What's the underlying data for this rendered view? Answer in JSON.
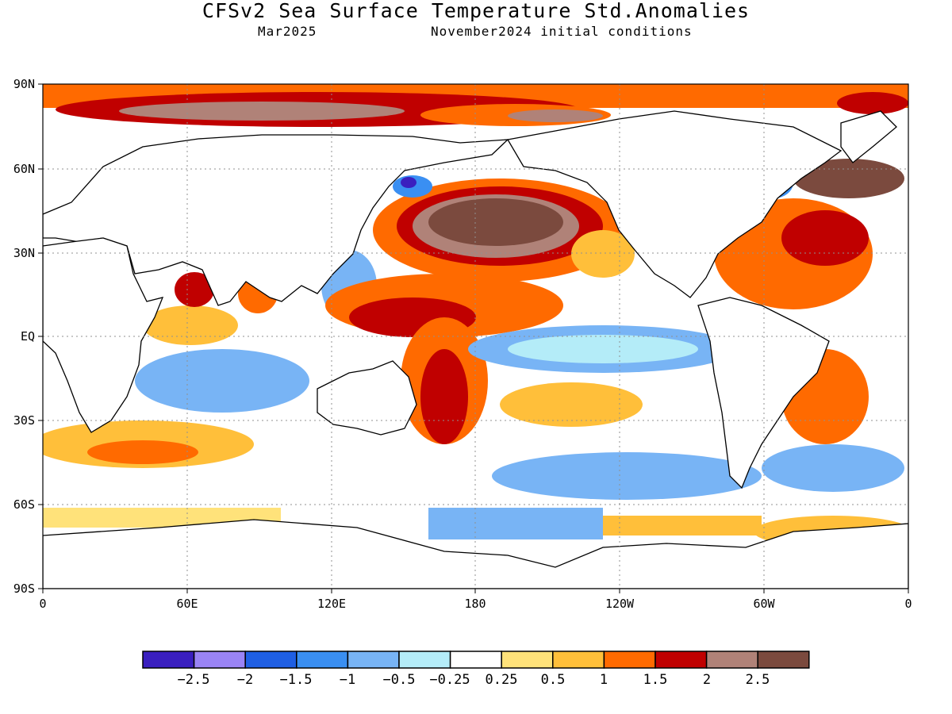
{
  "title": "CFSv2 Sea Surface Temperature Std.Anomalies",
  "subtitle_left": "Mar2025",
  "subtitle_right": "November2024 initial conditions",
  "map": {
    "lat_labels": [
      "90N",
      "60N",
      "30N",
      "EQ",
      "30S",
      "60S",
      "90S"
    ],
    "lon_labels": [
      "0",
      "60E",
      "120E",
      "180",
      "120W",
      "60W",
      "0"
    ],
    "land_color": "#ffffff",
    "grid": "dotted"
  },
  "colorbar": {
    "colors": [
      "#3a1fbf",
      "#9a84f5",
      "#1f5fe3",
      "#3a8ff2",
      "#78b4f5",
      "#b4ecf8",
      "#ffffff",
      "#ffe27a",
      "#ffbf3a",
      "#ff6a00",
      "#c00000",
      "#b08278",
      "#7b4a3e"
    ],
    "labels": [
      "−2.5",
      "−2",
      "−1.5",
      "−1",
      "−0.5",
      "−0.25",
      "0.25",
      "0.5",
      "1",
      "1.5",
      "2",
      "2.5"
    ]
  }
}
